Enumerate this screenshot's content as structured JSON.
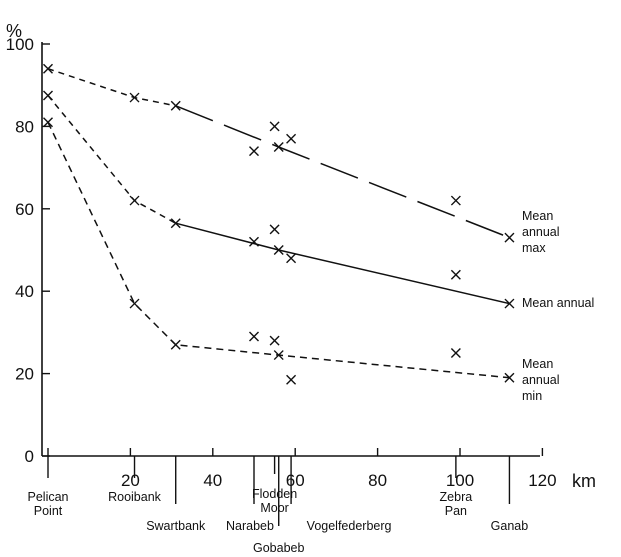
{
  "chart_data": {
    "type": "line",
    "y_unit": "%",
    "x_unit": "km",
    "xlim": [
      -2,
      120
    ],
    "ylim": [
      0,
      100
    ],
    "x_ticks": [
      0,
      20,
      40,
      60,
      80,
      100,
      120
    ],
    "y_ticks": [
      0,
      20,
      40,
      60,
      80,
      100
    ],
    "grid": false,
    "sites": [
      {
        "name": "Pelican Point",
        "lines": [
          "Pelican",
          "Point"
        ],
        "x": 0
      },
      {
        "name": "Rooibank",
        "lines": [
          "Rooibank"
        ],
        "x": 21
      },
      {
        "name": "Swartbank",
        "lines": [
          "Swartbank"
        ],
        "x": 31
      },
      {
        "name": "Narabeb",
        "lines": [
          "Narabeb"
        ],
        "x": 50
      },
      {
        "name": "Flodden Moor",
        "lines": [
          "Flodden",
          "Moor"
        ],
        "x": 55
      },
      {
        "name": "Gobabeb",
        "lines": [
          "Gobabeb"
        ],
        "x": 56
      },
      {
        "name": "Vogelfederberg",
        "lines": [
          "Vogelfederberg"
        ],
        "x": 59
      },
      {
        "name": "Zebra Pan",
        "lines": [
          "Zebra",
          "Pan"
        ],
        "x": 99
      },
      {
        "name": "Ganab",
        "lines": [
          "Ganab"
        ],
        "x": 112
      }
    ],
    "series": [
      {
        "name": "Mean annual max",
        "label_lines": [
          "Mean",
          "annual",
          "max"
        ],
        "points": [
          {
            "x": 0,
            "y": 94
          },
          {
            "x": 21,
            "y": 87
          },
          {
            "x": 31,
            "y": 85
          },
          {
            "x": 50,
            "y": 74
          },
          {
            "x": 55,
            "y": 80
          },
          {
            "x": 56,
            "y": 75
          },
          {
            "x": 59,
            "y": 77
          },
          {
            "x": 99,
            "y": 62
          },
          {
            "x": 112,
            "y": 53
          }
        ],
        "curve": [
          {
            "x": 0,
            "y": 94
          },
          {
            "x": 21,
            "y": 87
          },
          {
            "x": 31,
            "y": 85
          },
          {
            "x": 56,
            "y": 75
          },
          {
            "x": 112,
            "y": 53
          }
        ],
        "curve_style": "long-dash"
      },
      {
        "name": "Mean annual",
        "label_lines": [
          "Mean  annual"
        ],
        "points": [
          {
            "x": 0,
            "y": 87.5
          },
          {
            "x": 21,
            "y": 62
          },
          {
            "x": 31,
            "y": 56.5
          },
          {
            "x": 50,
            "y": 52
          },
          {
            "x": 55,
            "y": 55
          },
          {
            "x": 56,
            "y": 50
          },
          {
            "x": 59,
            "y": 48
          },
          {
            "x": 99,
            "y": 44
          },
          {
            "x": 112,
            "y": 37
          }
        ],
        "curve": [
          {
            "x": 0,
            "y": 87.5
          },
          {
            "x": 21,
            "y": 62
          },
          {
            "x": 31,
            "y": 56.5
          },
          {
            "x": 56,
            "y": 50
          },
          {
            "x": 112,
            "y": 37
          }
        ],
        "curve_style": "dash-then-solid"
      },
      {
        "name": "Mean annual min",
        "label_lines": [
          "Mean",
          "annual",
          "min"
        ],
        "points": [
          {
            "x": 0,
            "y": 81
          },
          {
            "x": 21,
            "y": 37
          },
          {
            "x": 31,
            "y": 27
          },
          {
            "x": 50,
            "y": 29
          },
          {
            "x": 55,
            "y": 28
          },
          {
            "x": 56,
            "y": 24.5
          },
          {
            "x": 59,
            "y": 18.5
          },
          {
            "x": 99,
            "y": 25
          },
          {
            "x": 112,
            "y": 19
          }
        ],
        "curve": [
          {
            "x": 0,
            "y": 81
          },
          {
            "x": 21,
            "y": 37
          },
          {
            "x": 31,
            "y": 27
          },
          {
            "x": 56,
            "y": 24.5
          },
          {
            "x": 112,
            "y": 19
          }
        ],
        "curve_style": "short-dash"
      }
    ]
  }
}
